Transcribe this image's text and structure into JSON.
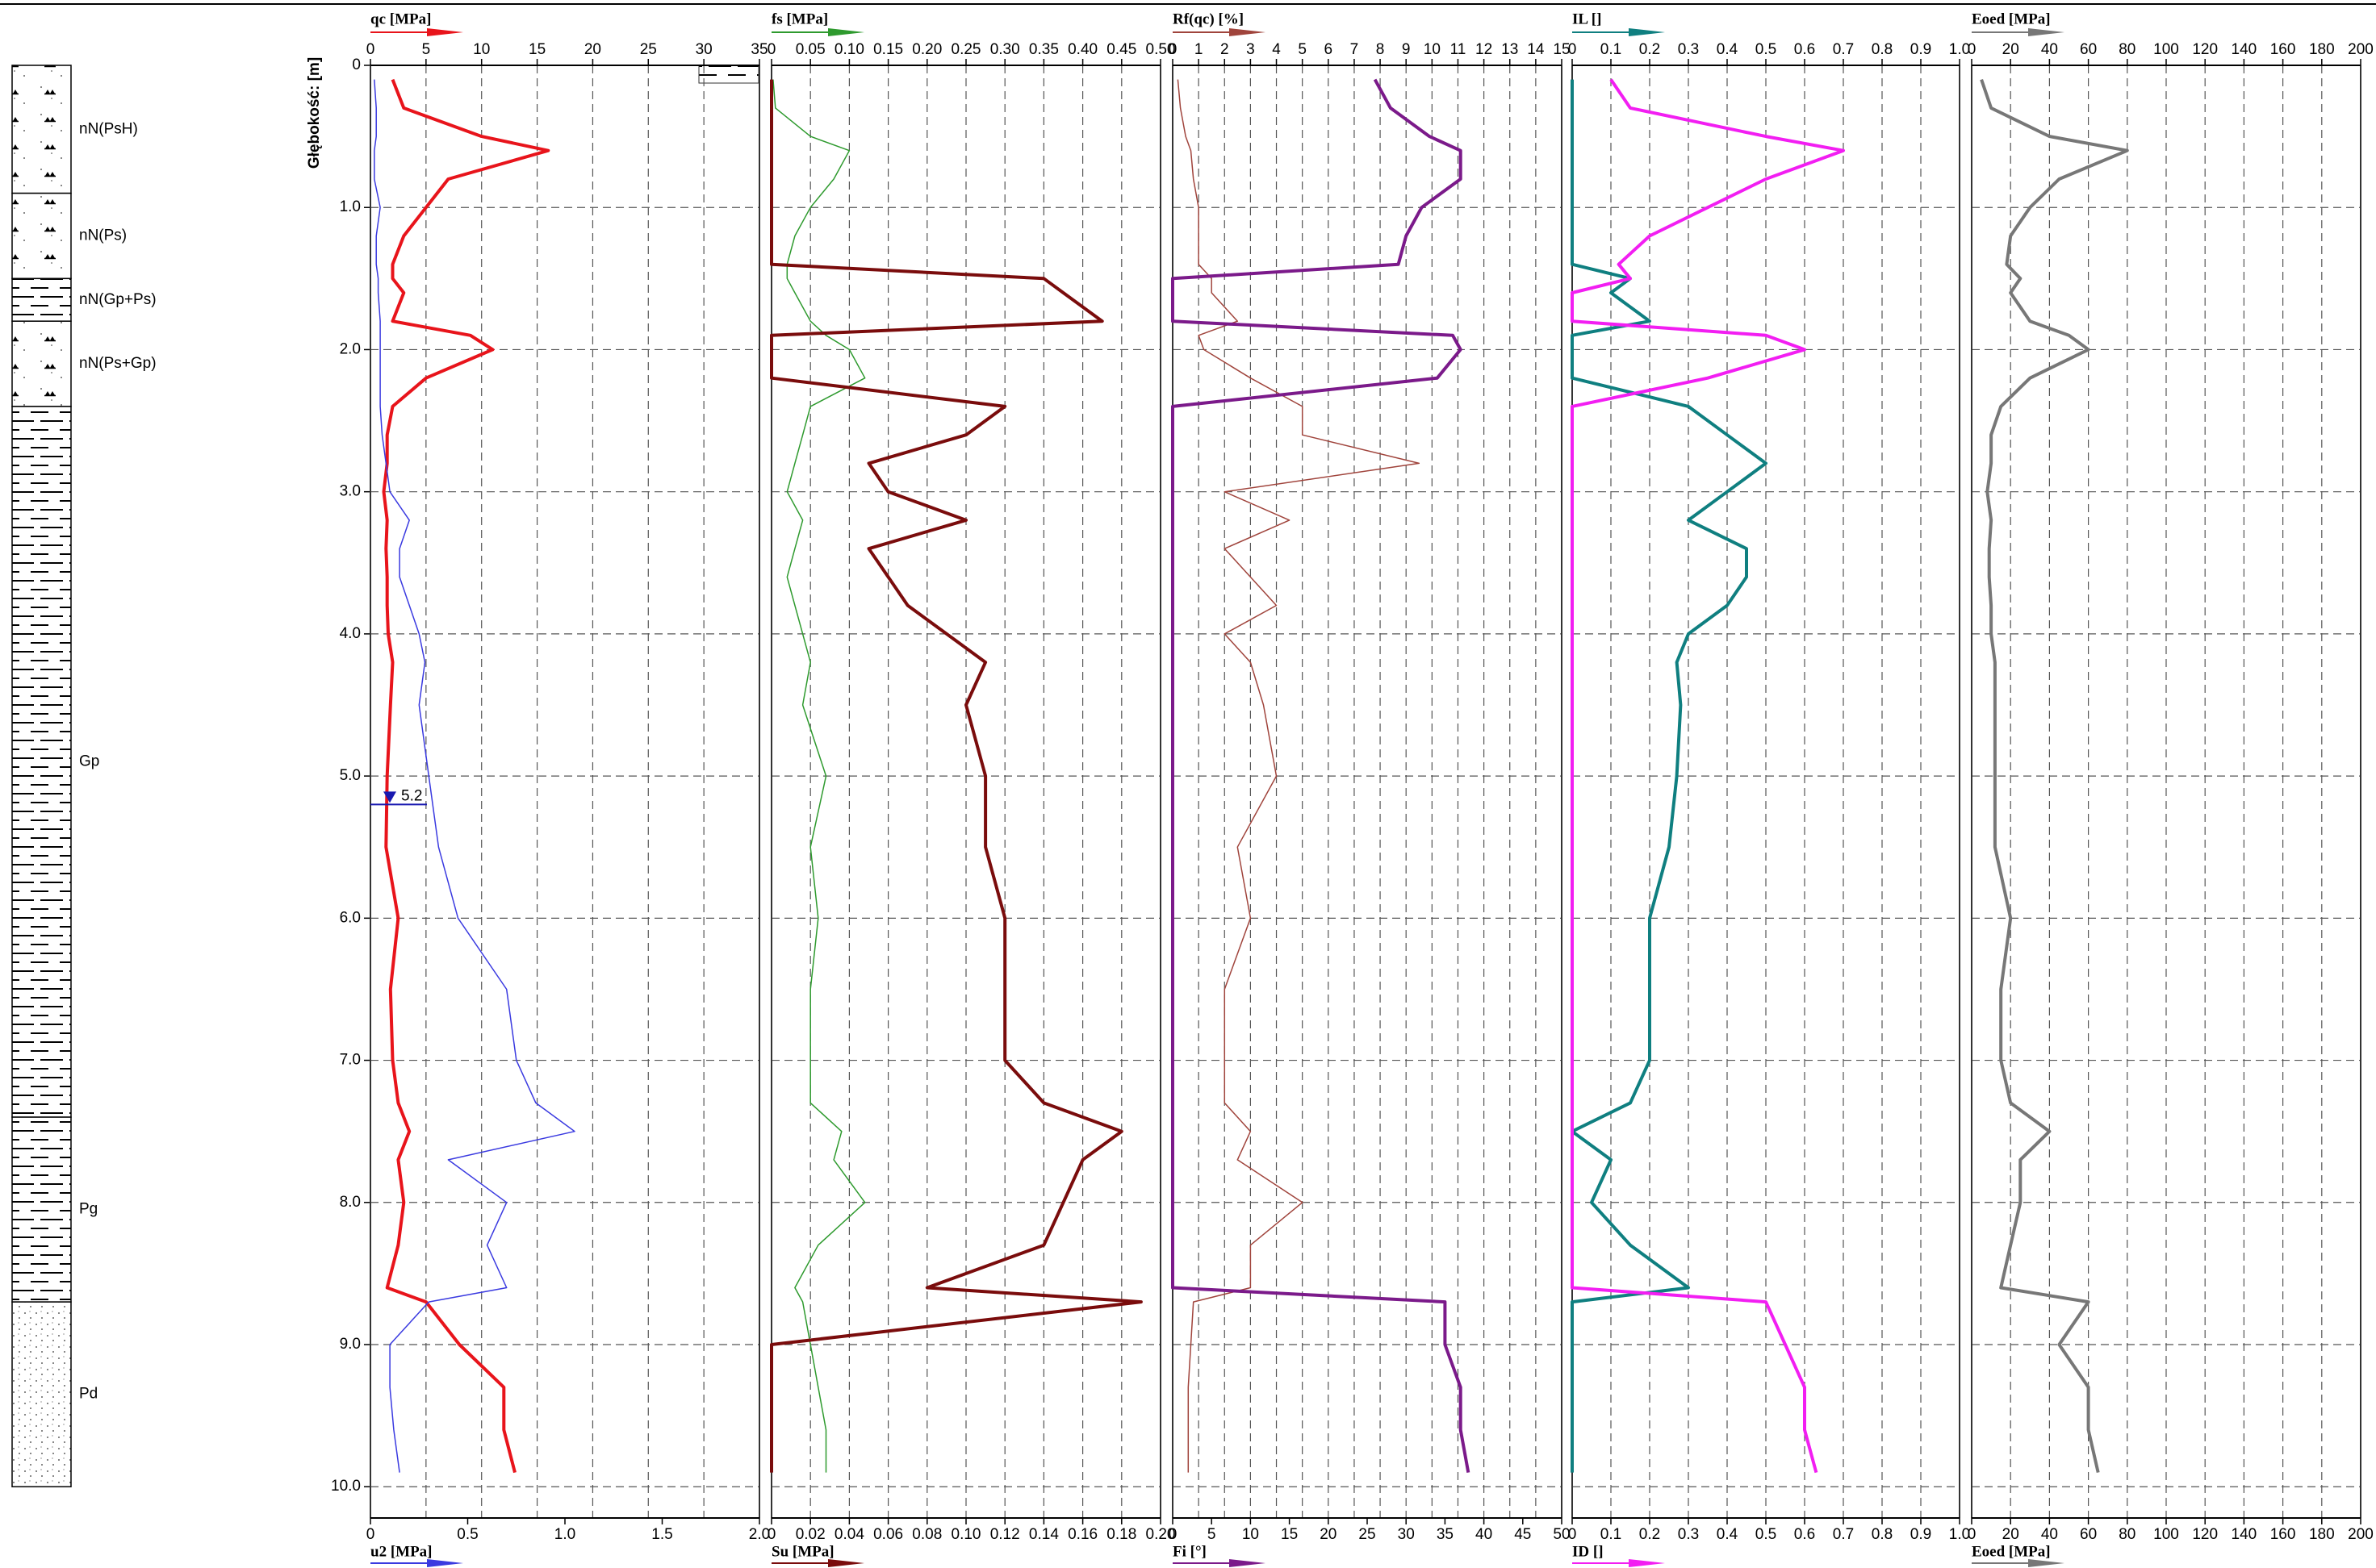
{
  "chart_data": {
    "type": "line",
    "ylabel": "Głębokość: [m]",
    "ylim": [
      0,
      10.22
    ],
    "yticks": [
      0,
      {
        "value": 1,
        "label": "1.0"
      },
      {
        "value": 2,
        "label": "2.0"
      },
      {
        "value": 3,
        "label": "3.0"
      },
      {
        "value": 4,
        "label": "4.0"
      },
      {
        "value": 5,
        "label": "5.0"
      },
      {
        "value": 6,
        "label": "6.0"
      },
      {
        "value": 7,
        "label": "7.0"
      },
      {
        "value": 8,
        "label": "8.0"
      },
      {
        "value": 9,
        "label": "9.0"
      },
      {
        "value": 10,
        "label": "10.0"
      }
    ],
    "grid": true,
    "groundwater": 5.2,
    "y": [
      0.1,
      0.3,
      0.5,
      0.6,
      0.8,
      1.0,
      1.2,
      1.4,
      1.5,
      1.6,
      1.8,
      1.9,
      2.0,
      2.2,
      2.4,
      2.6,
      2.8,
      3.0,
      3.2,
      3.4,
      3.6,
      3.8,
      4.0,
      4.2,
      4.5,
      5.0,
      5.5,
      6.0,
      6.5,
      7.0,
      7.3,
      7.5,
      7.7,
      8.0,
      8.3,
      8.6,
      8.7,
      9.0,
      9.3,
      9.6,
      9.9
    ],
    "panels": [
      {
        "xlim": [
          0,
          35
        ],
        "xticks": [
          0,
          5,
          10,
          15,
          20,
          25,
          30,
          35
        ],
        "x2lim": [
          0,
          2
        ],
        "x2ticks": [
          0,
          0.5,
          {
            "value": 1,
            "label": "1.0"
          },
          1.5,
          {
            "value": 2,
            "label": "2.0"
          }
        ],
        "series": [
          {
            "name": "qc [MPa]",
            "color": "#e8141b",
            "axis": "x",
            "line_width": 4,
            "values": [
              2,
              3,
              10,
              16,
              7,
              5,
              3,
              2,
              2,
              3,
              2,
              9,
              11,
              5,
              2,
              1.5,
              1.5,
              1.2,
              1.5,
              1.4,
              1.5,
              1.5,
              1.6,
              2,
              1.8,
              1.5,
              1.4,
              2.5,
              1.8,
              2,
              2.5,
              3.5,
              2.5,
              3,
              2.5,
              1.5,
              5,
              8,
              12,
              12,
              13
            ]
          },
          {
            "name": "u2 [MPa]",
            "color": "#3a3ae0",
            "axis": "x2",
            "line_width": 1.5,
            "values": [
              0.02,
              0.03,
              0.03,
              0.02,
              0.02,
              0.05,
              0.03,
              0.03,
              0.04,
              0.04,
              0.05,
              0.05,
              0.05,
              0.05,
              0.05,
              0.06,
              0.08,
              0.1,
              0.2,
              0.15,
              0.15,
              0.2,
              0.25,
              0.28,
              0.25,
              0.3,
              0.35,
              0.45,
              0.7,
              0.75,
              0.85,
              1.05,
              0.4,
              0.7,
              0.6,
              0.7,
              0.3,
              0.1,
              0.1,
              0.12,
              0.15
            ]
          }
        ]
      },
      {
        "xlim": [
          0,
          0.5
        ],
        "xticks": [
          0,
          0.05,
          {
            "value": 0.1,
            "label": "0.10"
          },
          0.15,
          {
            "value": 0.2,
            "label": "0.20"
          },
          0.25,
          {
            "value": 0.3,
            "label": "0.30"
          },
          0.35,
          {
            "value": 0.4,
            "label": "0.40"
          },
          0.45,
          {
            "value": 0.5,
            "label": "0.50"
          }
        ],
        "x2lim": [
          0,
          0.2
        ],
        "x2ticks": [
          0,
          0.02,
          0.04,
          0.06,
          0.08,
          {
            "value": 0.1,
            "label": "0.10"
          },
          0.12,
          0.14,
          0.16,
          0.18,
          {
            "value": 0.2,
            "label": "0.20"
          }
        ],
        "series": [
          {
            "name": "fs [MPa]",
            "color": "#2e9a2e",
            "axis": "x",
            "line_width": 1.5,
            "values": [
              0.002,
              0.005,
              0.05,
              0.1,
              0.08,
              0.05,
              0.03,
              0.02,
              0.02,
              0.03,
              0.05,
              0.07,
              0.1,
              0.12,
              0.05,
              0.04,
              0.03,
              0.02,
              0.04,
              0.03,
              0.02,
              0.03,
              0.04,
              0.05,
              0.04,
              0.07,
              0.05,
              0.06,
              0.05,
              0.05,
              0.05,
              0.09,
              0.08,
              0.12,
              0.06,
              0.03,
              0.04,
              0.05,
              0.06,
              0.07,
              0.07
            ]
          },
          {
            "name": "Su [MPa]",
            "color": "#7a0c0c",
            "axis": "x2",
            "line_width": 4,
            "values": [
              0,
              0,
              0,
              0,
              0,
              0,
              0,
              0,
              0.14,
              0.15,
              0.17,
              0,
              0,
              0,
              0.12,
              0.1,
              0.05,
              0.06,
              0.1,
              0.05,
              0.06,
              0.07,
              0.09,
              0.11,
              0.1,
              0.11,
              0.11,
              0.12,
              0.12,
              0.12,
              0.14,
              0.18,
              0.16,
              0.15,
              0.14,
              0.08,
              0.19,
              0,
              0,
              0,
              0
            ]
          }
        ]
      },
      {
        "xlim": [
          0,
          15
        ],
        "xticks": [
          0,
          1,
          2,
          3,
          4,
          5,
          6,
          7,
          8,
          9,
          10,
          11,
          12,
          13,
          14,
          15
        ],
        "x2lim": [
          0,
          50
        ],
        "x2ticks": [
          0,
          5,
          10,
          15,
          20,
          25,
          30,
          35,
          40,
          45,
          50
        ],
        "series": [
          {
            "name": "Rf(qc) [%]",
            "color": "#a0443c",
            "axis": "x",
            "line_width": 1.5,
            "values": [
              0.2,
              0.3,
              0.5,
              0.7,
              0.8,
              1,
              1,
              1,
              1.5,
              1.5,
              2.5,
              1,
              1.2,
              3,
              5,
              5,
              9.5,
              2,
              4.5,
              2,
              3,
              4,
              2,
              3,
              3.5,
              4,
              2.5,
              3,
              2,
              2,
              2,
              3,
              2.5,
              5,
              3,
              3,
              0.8,
              0.7,
              0.6,
              0.6,
              0.6
            ]
          },
          {
            "name": "Fi [°]",
            "color": "#7b1a8a",
            "axis": "x2",
            "line_width": 4,
            "values": [
              26,
              28,
              33,
              37,
              37,
              32,
              30,
              29,
              0,
              0,
              0,
              36,
              37,
              34,
              0,
              0,
              0,
              0,
              0,
              0,
              0,
              0,
              0,
              0,
              0,
              0,
              0,
              0,
              0,
              0,
              0,
              0,
              0,
              0,
              0,
              0,
              35,
              35,
              37,
              37,
              38
            ]
          }
        ]
      },
      {
        "xlim": [
          0,
          1
        ],
        "xticks": [
          0,
          0.1,
          0.2,
          0.3,
          0.4,
          0.5,
          0.6,
          0.7,
          0.8,
          0.9,
          {
            "value": 1,
            "label": "1.0"
          }
        ],
        "x2lim": [
          0,
          1
        ],
        "x2ticks": [
          0,
          0.1,
          0.2,
          0.3,
          0.4,
          0.5,
          0.6,
          0.7,
          0.8,
          0.9,
          {
            "value": 1,
            "label": "1.0"
          }
        ],
        "series": [
          {
            "name": "IL []",
            "color": "#0f7f80",
            "axis": "x",
            "line_width": 4,
            "values": [
              0,
              0,
              0,
              0,
              0,
              0,
              0,
              0,
              0.15,
              0.1,
              0.2,
              0,
              0,
              0,
              0.3,
              0.4,
              0.5,
              0.4,
              0.3,
              0.45,
              0.45,
              0.4,
              0.3,
              0.27,
              0.28,
              0.27,
              0.25,
              0.2,
              0.2,
              0.2,
              0.15,
              0,
              0.1,
              0.05,
              0.15,
              0.3,
              0,
              0,
              0,
              0,
              0
            ]
          },
          {
            "name": "ID []",
            "color": "#f21ef2",
            "axis": "x2",
            "line_width": 4,
            "values": [
              0.1,
              0.15,
              0.5,
              0.7,
              0.5,
              0.35,
              0.2,
              0.12,
              0.15,
              0,
              0,
              0.5,
              0.6,
              0.35,
              0,
              0,
              0,
              0,
              0,
              0,
              0,
              0,
              0,
              0,
              0,
              0,
              0,
              0,
              0,
              0,
              0,
              0,
              0,
              0,
              0,
              0,
              0.5,
              0.55,
              0.6,
              0.6,
              0.63
            ]
          }
        ]
      },
      {
        "xlim": [
          0,
          200
        ],
        "xticks": [
          0,
          20,
          40,
          60,
          80,
          100,
          120,
          140,
          160,
          180,
          200
        ],
        "x2lim": [
          0,
          200
        ],
        "x2ticks": [
          0,
          20,
          40,
          60,
          80,
          100,
          120,
          140,
          160,
          180,
          200
        ],
        "x2label": "Eoed [MPa]",
        "series": [
          {
            "name": "Eoed [MPa]",
            "color": "#777777",
            "axis": "x",
            "line_width": 4,
            "values": [
              5,
              10,
              40,
              80,
              45,
              30,
              20,
              18,
              25,
              20,
              30,
              50,
              60,
              30,
              15,
              10,
              10,
              8,
              10,
              9,
              9,
              10,
              10,
              12,
              12,
              12,
              12,
              20,
              15,
              15,
              20,
              40,
              25,
              25,
              20,
              15,
              60,
              45,
              60,
              60,
              65
            ]
          }
        ]
      }
    ]
  },
  "soil_profile": {
    "layers": [
      {
        "label": "nN(PsH)",
        "top": 0,
        "bottom": 0.9,
        "pattern": "humus"
      },
      {
        "label": "nN(Ps)",
        "top": 0.9,
        "bottom": 1.5,
        "pattern": "humus"
      },
      {
        "label": "nN(Gp+Ps)",
        "top": 1.5,
        "bottom": 1.8,
        "pattern": "clay"
      },
      {
        "label": "nN(Ps+Gp)",
        "top": 1.8,
        "bottom": 2.4,
        "pattern": "humus"
      },
      {
        "label": "Gp",
        "top": 2.4,
        "bottom": 7.4,
        "pattern": "clay"
      },
      {
        "label": "Pg",
        "top": 7.4,
        "bottom": 8.7,
        "pattern": "clay"
      },
      {
        "label": "Pd",
        "top": 8.7,
        "bottom": 10,
        "pattern": "sand"
      }
    ]
  }
}
